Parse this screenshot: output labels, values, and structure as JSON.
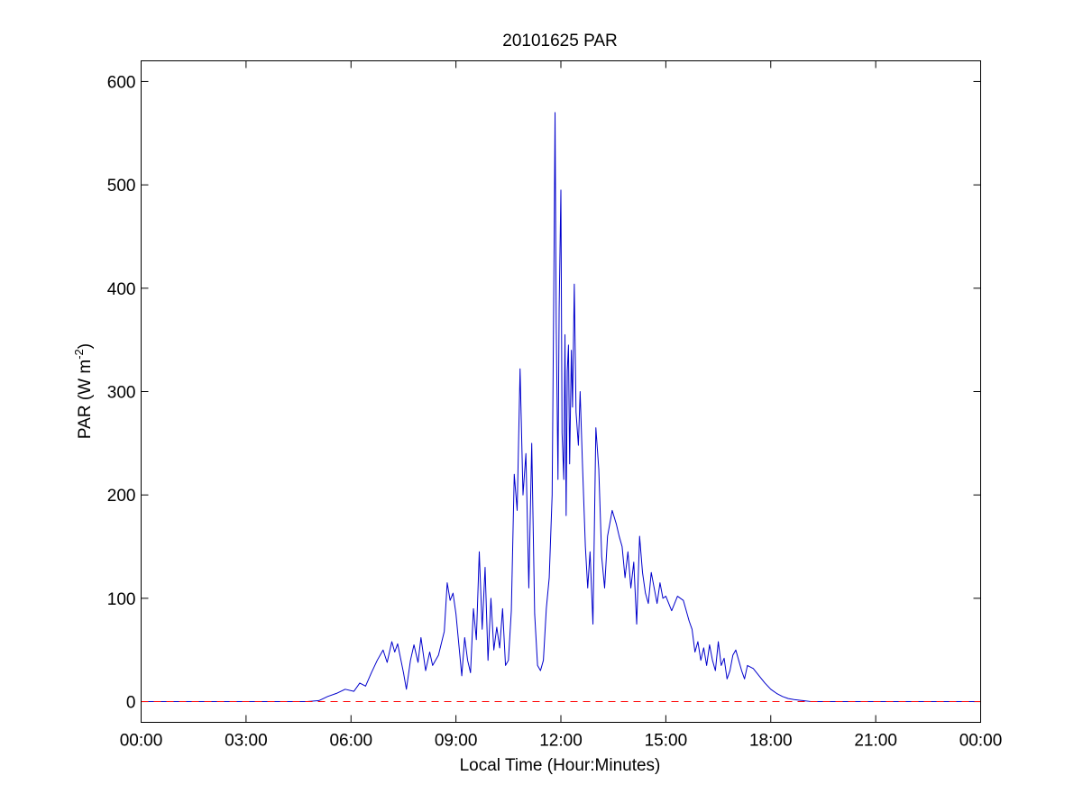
{
  "chart_data": {
    "type": "line",
    "title": "20101625 PAR",
    "xlabel": "Local Time (Hour:Minutes)",
    "ylabel": {
      "prefix": "PAR (W m",
      "superscript": "-2",
      "suffix": ")"
    },
    "xlim": [
      "00:00",
      "24:00"
    ],
    "ylim": [
      -20,
      620
    ],
    "x_ticks": [
      "00:00",
      "03:00",
      "06:00",
      "09:00",
      "12:00",
      "15:00",
      "18:00",
      "21:00",
      "00:00"
    ],
    "y_ticks": [
      0,
      100,
      200,
      300,
      400,
      500,
      600
    ],
    "grid": false,
    "series": [
      {
        "color": "#0000cc",
        "style": "solid",
        "points": [
          [
            "00:00",
            0
          ],
          [
            "01:00",
            0
          ],
          [
            "02:00",
            0
          ],
          [
            "03:00",
            0
          ],
          [
            "04:00",
            0
          ],
          [
            "04:45",
            0
          ],
          [
            "05:05",
            1
          ],
          [
            "05:20",
            5
          ],
          [
            "05:35",
            8
          ],
          [
            "05:50",
            12
          ],
          [
            "06:05",
            10
          ],
          [
            "06:15",
            18
          ],
          [
            "06:25",
            15
          ],
          [
            "06:35",
            28
          ],
          [
            "06:45",
            40
          ],
          [
            "06:55",
            50
          ],
          [
            "07:02",
            38
          ],
          [
            "07:10",
            58
          ],
          [
            "07:15",
            48
          ],
          [
            "07:20",
            56
          ],
          [
            "07:30",
            28
          ],
          [
            "07:35",
            12
          ],
          [
            "07:42",
            40
          ],
          [
            "07:48",
            55
          ],
          [
            "07:55",
            38
          ],
          [
            "08:00",
            62
          ],
          [
            "08:08",
            30
          ],
          [
            "08:15",
            48
          ],
          [
            "08:20",
            35
          ],
          [
            "08:30",
            45
          ],
          [
            "08:40",
            68
          ],
          [
            "08:45",
            115
          ],
          [
            "08:50",
            98
          ],
          [
            "08:55",
            105
          ],
          [
            "09:00",
            85
          ],
          [
            "09:05",
            55
          ],
          [
            "09:10",
            25
          ],
          [
            "09:15",
            62
          ],
          [
            "09:20",
            40
          ],
          [
            "09:25",
            28
          ],
          [
            "09:30",
            90
          ],
          [
            "09:35",
            60
          ],
          [
            "09:40",
            145
          ],
          [
            "09:45",
            70
          ],
          [
            "09:50",
            130
          ],
          [
            "09:55",
            40
          ],
          [
            "10:00",
            100
          ],
          [
            "10:05",
            50
          ],
          [
            "10:10",
            72
          ],
          [
            "10:15",
            52
          ],
          [
            "10:20",
            90
          ],
          [
            "10:25",
            35
          ],
          [
            "10:30",
            40
          ],
          [
            "10:35",
            88
          ],
          [
            "10:40",
            220
          ],
          [
            "10:45",
            185
          ],
          [
            "10:50",
            322
          ],
          [
            "10:55",
            200
          ],
          [
            "11:00",
            240
          ],
          [
            "11:05",
            110
          ],
          [
            "11:10",
            250
          ],
          [
            "11:15",
            85
          ],
          [
            "11:20",
            35
          ],
          [
            "11:25",
            30
          ],
          [
            "11:30",
            40
          ],
          [
            "11:35",
            90
          ],
          [
            "11:40",
            120
          ],
          [
            "11:45",
            200
          ],
          [
            "11:48",
            410
          ],
          [
            "11:50",
            570
          ],
          [
            "11:52",
            365
          ],
          [
            "11:55",
            215
          ],
          [
            "11:57",
            380
          ],
          [
            "12:00",
            495
          ],
          [
            "12:02",
            260
          ],
          [
            "12:05",
            215
          ],
          [
            "12:07",
            355
          ],
          [
            "12:09",
            180
          ],
          [
            "12:11",
            320
          ],
          [
            "12:13",
            345
          ],
          [
            "12:15",
            230
          ],
          [
            "12:18",
            340
          ],
          [
            "12:20",
            285
          ],
          [
            "12:23",
            404
          ],
          [
            "12:26",
            280
          ],
          [
            "12:30",
            248
          ],
          [
            "12:33",
            300
          ],
          [
            "12:37",
            230
          ],
          [
            "12:42",
            150
          ],
          [
            "12:46",
            110
          ],
          [
            "12:50",
            145
          ],
          [
            "12:55",
            75
          ],
          [
            "13:00",
            265
          ],
          [
            "13:05",
            225
          ],
          [
            "13:10",
            140
          ],
          [
            "13:15",
            110
          ],
          [
            "13:20",
            160
          ],
          [
            "13:28",
            185
          ],
          [
            "13:35",
            172
          ],
          [
            "13:40",
            160
          ],
          [
            "13:45",
            150
          ],
          [
            "13:50",
            120
          ],
          [
            "13:55",
            145
          ],
          [
            "14:00",
            110
          ],
          [
            "14:05",
            135
          ],
          [
            "14:10",
            75
          ],
          [
            "14:15",
            160
          ],
          [
            "14:20",
            125
          ],
          [
            "14:25",
            105
          ],
          [
            "14:30",
            95
          ],
          [
            "14:35",
            125
          ],
          [
            "14:40",
            110
          ],
          [
            "14:45",
            95
          ],
          [
            "14:50",
            115
          ],
          [
            "14:55",
            100
          ],
          [
            "15:00",
            102
          ],
          [
            "15:10",
            88
          ],
          [
            "15:20",
            102
          ],
          [
            "15:30",
            98
          ],
          [
            "15:40",
            78
          ],
          [
            "15:45",
            70
          ],
          [
            "15:50",
            48
          ],
          [
            "15:55",
            58
          ],
          [
            "16:00",
            40
          ],
          [
            "16:05",
            52
          ],
          [
            "16:10",
            35
          ],
          [
            "16:15",
            55
          ],
          [
            "16:20",
            40
          ],
          [
            "16:25",
            30
          ],
          [
            "16:30",
            58
          ],
          [
            "16:35",
            35
          ],
          [
            "16:40",
            42
          ],
          [
            "16:45",
            22
          ],
          [
            "16:50",
            30
          ],
          [
            "16:55",
            45
          ],
          [
            "17:00",
            50
          ],
          [
            "17:05",
            40
          ],
          [
            "17:10",
            30
          ],
          [
            "17:15",
            22
          ],
          [
            "17:20",
            35
          ],
          [
            "17:30",
            32
          ],
          [
            "17:40",
            25
          ],
          [
            "17:50",
            18
          ],
          [
            "18:00",
            12
          ],
          [
            "18:10",
            8
          ],
          [
            "18:20",
            5
          ],
          [
            "18:30",
            3
          ],
          [
            "18:40",
            2
          ],
          [
            "18:55",
            1
          ],
          [
            "19:10",
            0
          ],
          [
            "20:00",
            0
          ],
          [
            "21:00",
            0
          ],
          [
            "22:00",
            0
          ],
          [
            "23:00",
            0
          ],
          [
            "24:00",
            0
          ]
        ]
      },
      {
        "color": "#ff0000",
        "style": "dashed",
        "points": [
          [
            "00:00",
            0
          ],
          [
            "24:00",
            0
          ]
        ]
      }
    ]
  }
}
